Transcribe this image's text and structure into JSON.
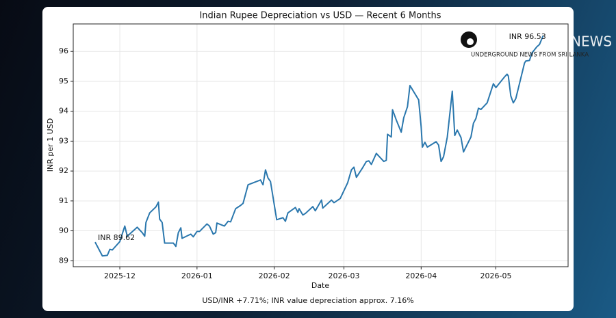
{
  "chart_data": {
    "type": "line",
    "title": "Indian Rupee Depreciation vs USD — Recent 6 Months",
    "xlabel": "Date",
    "ylabel": "INR per 1 USD",
    "footnote": "USD/INR +7.71%; INR value depreciation approx. 7.16%",
    "x": [
      -9.9,
      -7,
      -5,
      -4,
      -3,
      0,
      2,
      3,
      7,
      9,
      10,
      10.5,
      12,
      14.5,
      15.5,
      16,
      17,
      18,
      21.5,
      22.5,
      23.5,
      24.5,
      25,
      28.5,
      29.5,
      31,
      32,
      35,
      36,
      37.5,
      38.5,
      39,
      42,
      43.5,
      44.5,
      46.5,
      48.5,
      49.5,
      51.5,
      56.5,
      57.5,
      58.5,
      59.5,
      60.5,
      63,
      65.5,
      66.5,
      67.5,
      70.5,
      71.5,
      72,
      73.5,
      74.5,
      77.5,
      78.5,
      81,
      81.5,
      85,
      86,
      88.5,
      91.5,
      93,
      94,
      95,
      97.5,
      99,
      100,
      101,
      103,
      106,
      107,
      107.5,
      109,
      109.5,
      111,
      113,
      114,
      115.5,
      116.5,
      120,
      121,
      121.5,
      122.5,
      123.5,
      127,
      128,
      129,
      130,
      131.5,
      133.5,
      134.5,
      135.5,
      137,
      138,
      141,
      142,
      143,
      144,
      145,
      147.5,
      150,
      151,
      154.5,
      155.5,
      156,
      157,
      158,
      159,
      162.5,
      163,
      164.5,
      165.5,
      167.5,
      168.5,
      170
    ],
    "series": [
      {
        "name": "USD/INR",
        "color": "#2a77ad",
        "values": [
          89.62,
          89.16,
          89.18,
          89.38,
          89.36,
          89.64,
          90.16,
          89.82,
          90.12,
          89.94,
          89.82,
          90.28,
          90.6,
          90.8,
          90.96,
          90.39,
          90.28,
          89.59,
          89.59,
          89.48,
          89.94,
          90.1,
          89.75,
          89.89,
          89.8,
          89.98,
          89.98,
          90.23,
          90.16,
          89.89,
          89.94,
          90.26,
          90.16,
          90.32,
          90.3,
          90.74,
          90.85,
          90.92,
          91.54,
          91.7,
          91.54,
          92.04,
          91.77,
          91.65,
          90.37,
          90.44,
          90.32,
          90.6,
          90.78,
          90.62,
          90.74,
          90.53,
          90.58,
          90.81,
          90.67,
          91.03,
          90.76,
          91.03,
          90.94,
          91.08,
          91.61,
          92.04,
          92.13,
          91.79,
          92.11,
          92.32,
          92.34,
          92.22,
          92.59,
          92.32,
          92.36,
          93.23,
          93.14,
          94.05,
          93.71,
          93.3,
          93.78,
          94.15,
          94.86,
          94.38,
          93.48,
          92.8,
          92.96,
          92.8,
          92.98,
          92.87,
          92.32,
          92.48,
          93.14,
          94.67,
          93.19,
          93.37,
          93.12,
          92.64,
          93.14,
          93.6,
          93.76,
          94.1,
          94.06,
          94.28,
          94.92,
          94.79,
          95.15,
          95.24,
          95.18,
          94.51,
          94.28,
          94.42,
          95.61,
          95.68,
          95.7,
          95.95,
          96.16,
          96.23,
          96.53
        ]
      }
    ],
    "xlim": [
      -18.7,
      180
    ],
    "xticks": [
      {
        "value": 0,
        "label": "2025-12"
      },
      {
        "value": 31,
        "label": "2026-01"
      },
      {
        "value": 62,
        "label": "2026-02"
      },
      {
        "value": 90,
        "label": "2026-03"
      },
      {
        "value": 121,
        "label": "2026-04"
      },
      {
        "value": 151,
        "label": "2026-05"
      }
    ],
    "ylim": [
      88.8,
      96.92
    ],
    "yticks": [
      89,
      90,
      91,
      92,
      93,
      94,
      95,
      96
    ],
    "grid": true,
    "annotations": [
      {
        "text": "INR 89.62"
      },
      {
        "text": "INR 96.53"
      }
    ]
  },
  "watermark": {
    "name": "NEWS",
    "tagline": "UNDERGROUND NEWS FROM SRI LANKA"
  }
}
